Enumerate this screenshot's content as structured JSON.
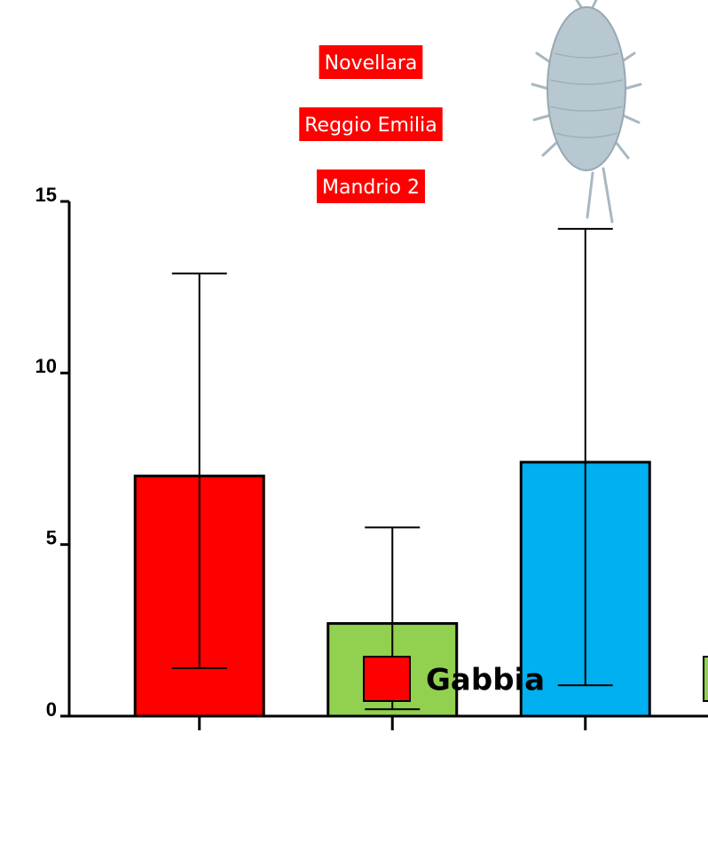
{
  "chart_data": {
    "type": "bar",
    "annotations": [
      "Novellara",
      "Reggio Emilia",
      "Mandrio 2"
    ],
    "categories": [
      null,
      null,
      null
    ],
    "values": [
      7.0,
      2.7,
      7.4
    ],
    "error_low": [
      1.4,
      0.2,
      0.9
    ],
    "error_high": [
      12.9,
      5.5,
      14.2
    ],
    "colors": [
      "#ff0000",
      "#92d050",
      "#00b0f0"
    ],
    "ylim": [
      0,
      15
    ],
    "yticks": [
      0,
      5,
      10,
      15
    ],
    "legend": [
      {
        "name": "Gabbia",
        "color": "#ff0000"
      },
      {
        "color": "#92d050"
      }
    ]
  }
}
